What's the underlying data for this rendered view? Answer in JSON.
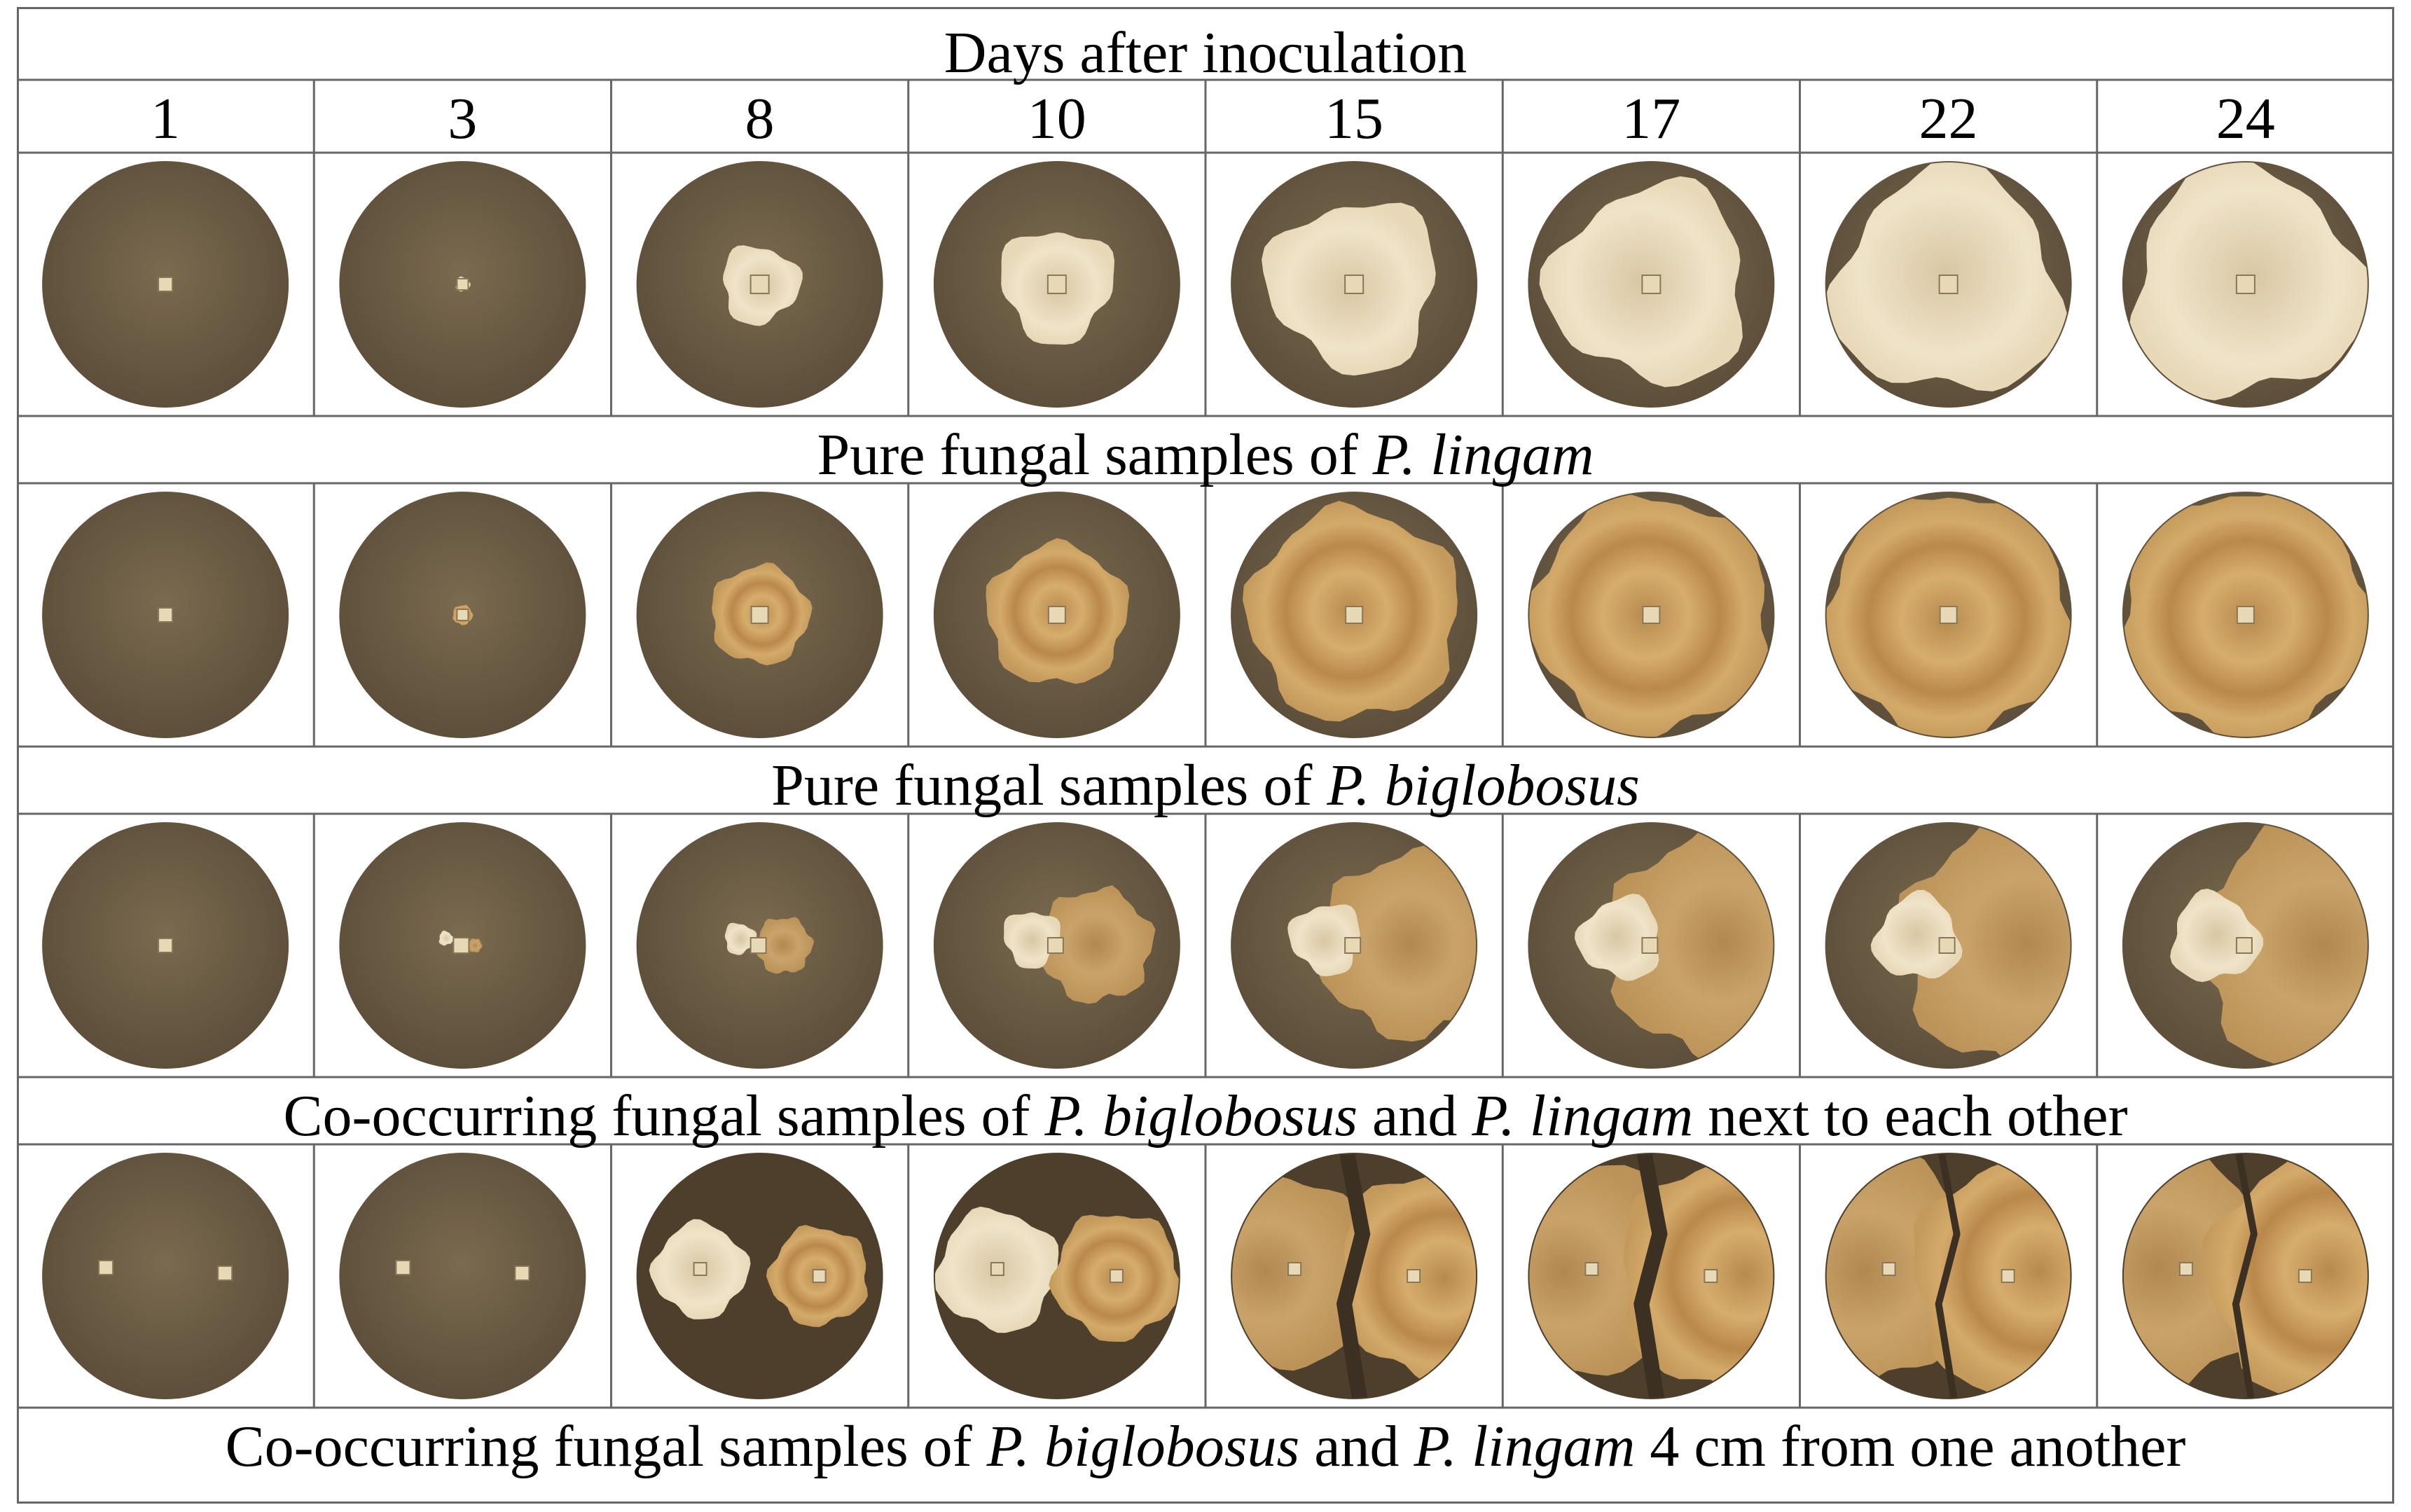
{
  "header": {
    "title": "Days after inoculation",
    "days": [
      "1",
      "3",
      "8",
      "10",
      "15",
      "17",
      "22",
      "24"
    ]
  },
  "rows": [
    {
      "id": "p-lingam-pure",
      "caption": {
        "pre": "Pure fungal samples of ",
        "sp1": "P. lingam"
      }
    },
    {
      "id": "p-biglobosus-pure",
      "caption": {
        "pre": "Pure fungal samples of ",
        "sp1": "P. biglobosus"
      }
    },
    {
      "id": "co-adjacent",
      "caption": {
        "pre": "Co-occurring fungal samples of ",
        "sp1": "P. biglobosus",
        "mid": " and ",
        "sp2": "P. lingam",
        "post": " next to each other"
      }
    },
    {
      "id": "co-4cm",
      "caption": {
        "pre": "Co-occurring fungal samples of ",
        "sp1": "P. biglobosus",
        "mid": " and ",
        "sp2": "P. lingam",
        "post": " 4 cm from one another"
      }
    }
  ],
  "colors": {
    "agar": "#6f6048",
    "agar_dark": "#4e4231",
    "lingam": "#e9dcc0",
    "biglobosus": "#c9a061",
    "border": "#555555"
  }
}
